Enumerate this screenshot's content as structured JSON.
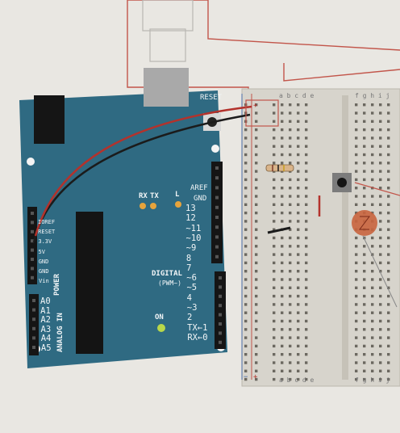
{
  "board": {
    "reset_label": "RESET",
    "aref_label": "AREF",
    "gnd_label": "GND",
    "digital_pins": [
      "13",
      "12",
      "~11",
      "~10",
      "~9",
      "8",
      "7",
      "~6",
      "~5",
      "4",
      "~3",
      "2",
      "TX←1",
      "RX←0"
    ],
    "digital_label": "DIGITAL",
    "pwm_label": "(PWM~)",
    "rx_label": "RX",
    "tx_label": "TX",
    "l_label": "L",
    "on_label": "ON",
    "power_pins": [
      "IOREF",
      "RESET",
      "3.3V",
      "5V",
      "GND",
      "GND",
      "Vin"
    ],
    "power_label": "POWER",
    "analog_pins": [
      "A0",
      "A1",
      "A2",
      "A3",
      "A4",
      "A5"
    ],
    "analog_label": "ANALOG IN"
  },
  "breadboard": {
    "col_letters_left": "a b c d e",
    "col_letters_right": "f g h i j",
    "rail_plus": "+",
    "rail_minus": "−"
  },
  "colors": {
    "board": "#2f6a82",
    "breadboard": "#d7d4cc",
    "wire_red": "#b3322c",
    "wire_black": "#1b1b1b",
    "outline_wire": "#c2554a",
    "led": "#c9643e"
  }
}
